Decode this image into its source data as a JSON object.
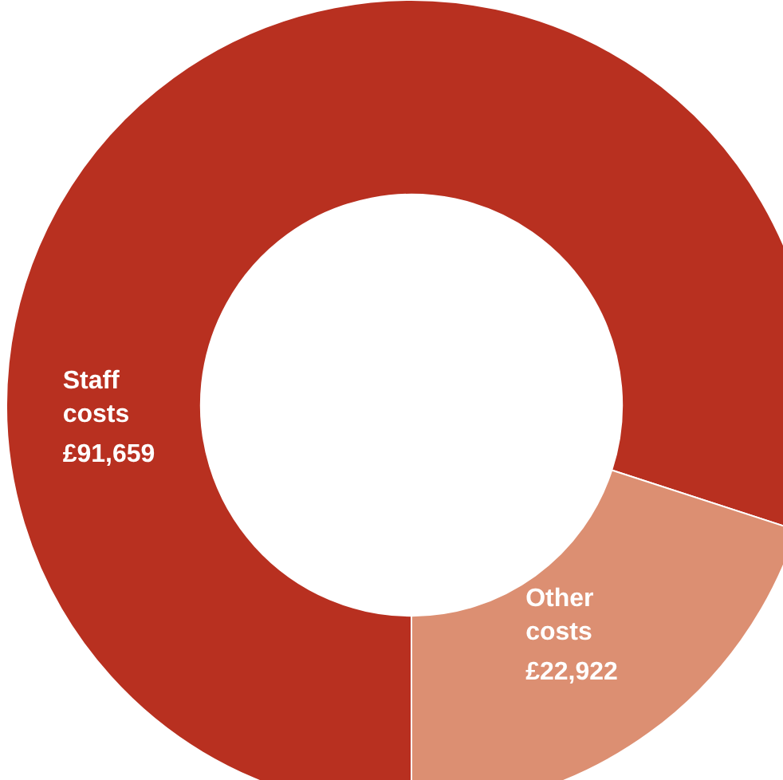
{
  "chart_data": {
    "type": "donut",
    "categories": [
      "Staff costs",
      "Other costs"
    ],
    "values": [
      91659,
      22922
    ],
    "value_labels": [
      "£91,659",
      "£22,922"
    ],
    "colors": [
      "#b83020",
      "#dc8f72"
    ]
  }
}
